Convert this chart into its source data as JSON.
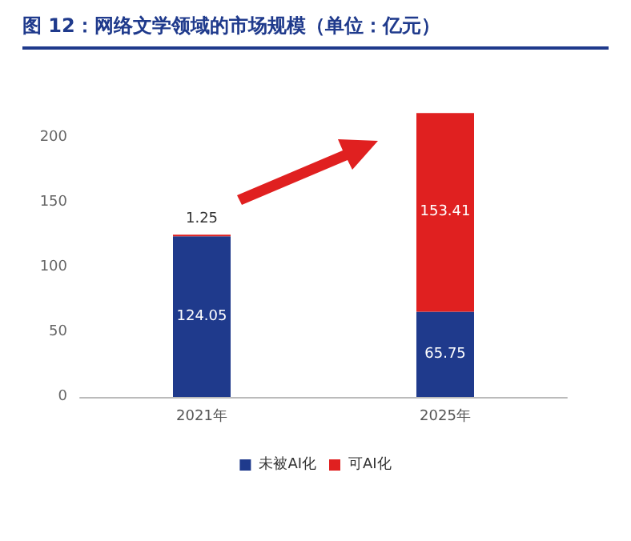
{
  "chart_data": {
    "type": "bar",
    "title": "图 12：网络文学领域的市场规模（单位：亿元）",
    "categories": [
      "2021年",
      "2025年"
    ],
    "stacked": true,
    "series": [
      {
        "name": "未被AI化",
        "color": "#1f3a8c",
        "values": [
          124.05,
          65.75
        ]
      },
      {
        "name": "可AI化",
        "color": "#e02020",
        "values": [
          1.25,
          153.41
        ]
      }
    ],
    "ylim": [
      0,
      220
    ],
    "yticks": [
      0,
      50,
      100,
      150,
      200
    ],
    "grid": false,
    "legend": "bottom",
    "data_labels": true
  }
}
